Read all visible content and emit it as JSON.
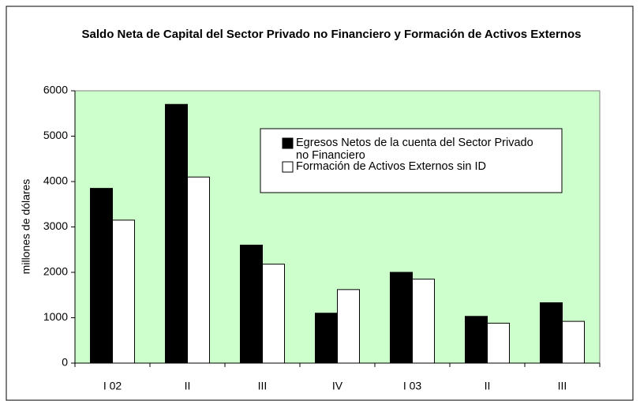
{
  "chart_data": {
    "type": "bar",
    "title": "Saldo Neta de Capital del Sector Privado no Financiero y Formación de Activos Externos",
    "y_label": "millones de dólares",
    "categories": [
      "I 02",
      "II",
      "III",
      "IV",
      "I 03",
      "II",
      "III"
    ],
    "series": [
      {
        "name": "Egresos Netos de la cuenta del Sector Privado no Financiero",
        "color": "#000000",
        "values": [
          3850,
          5700,
          2600,
          1100,
          2000,
          1030,
          1330
        ]
      },
      {
        "name": "Formación de Activos Externos sin ID",
        "color": "#ffffff",
        "values": [
          3150,
          4100,
          2180,
          1620,
          1850,
          880,
          920
        ]
      }
    ],
    "ylim": [
      0,
      6000
    ],
    "yticks": [
      0,
      1000,
      2000,
      3000,
      4000,
      5000,
      6000
    ],
    "plot_background": "#ccffcc",
    "grid": false
  }
}
